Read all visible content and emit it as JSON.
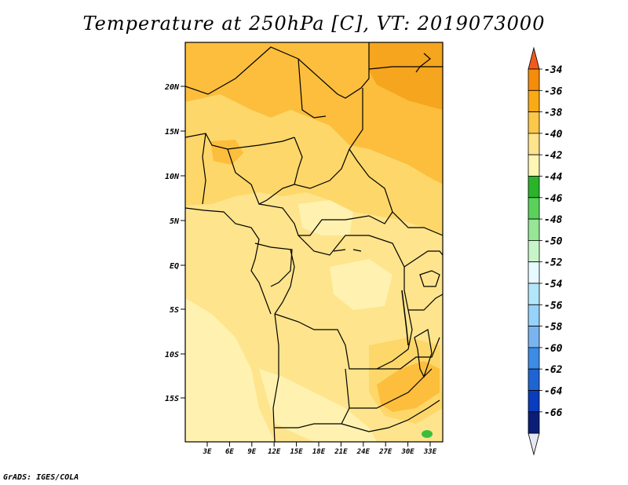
{
  "title": "Temperature at 250hPa [C], VT: 2019073000",
  "credit": "GrADS: IGES/COLA",
  "map": {
    "lat_labels": [
      "20N",
      "15N",
      "10N",
      "5N",
      "EQ",
      "5S",
      "10S",
      "15S"
    ],
    "lon_labels": [
      "3E",
      "6E",
      "9E",
      "12E",
      "15E",
      "18E",
      "21E",
      "24E",
      "27E",
      "30E",
      "33E"
    ]
  },
  "colorbar": {
    "labels": [
      "-34",
      "-36",
      "-38",
      "-40",
      "-42",
      "-44",
      "-46",
      "-48",
      "-50",
      "-52",
      "-54",
      "-56",
      "-58",
      "-60",
      "-62",
      "-64",
      "-66"
    ],
    "colors": [
      "#f05a1e",
      "#f58c0a",
      "#faaa14",
      "#fcc84a",
      "#fee48c",
      "#fff5b4",
      "#2ab42a",
      "#5ad25a",
      "#96e696",
      "#c8f5c8",
      "#e6faff",
      "#b4e6fa",
      "#96d2fa",
      "#78b4f0",
      "#3c8ce6",
      "#1e64d2",
      "#0a3cbe",
      "#0a1e78",
      "#e6e6f5"
    ]
  },
  "field_colors": {
    "warm_m36": "#f5a51e",
    "m38": "#fcbe3c",
    "m40": "#fdd769",
    "m42": "#fee48c",
    "m44": "#fff2b0",
    "green_m46": "#3cbe3c"
  }
}
